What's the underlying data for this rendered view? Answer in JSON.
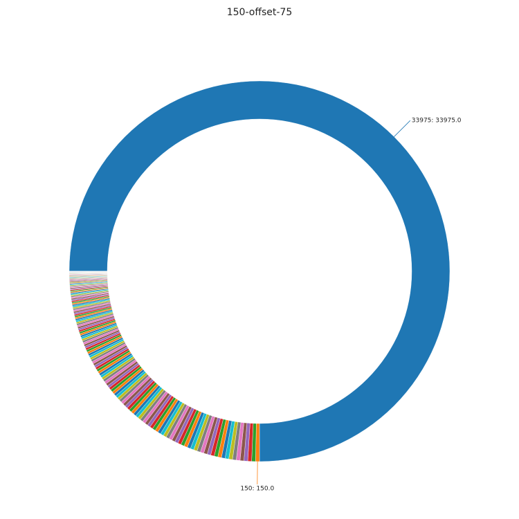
{
  "chart_data": {
    "type": "donut",
    "title": "150-offset-75",
    "startangle": 180,
    "counterclock": false,
    "colors": [
      "#1f77b4",
      "#ff7f0e",
      "#2ca02c",
      "#d62728",
      "#9467bd",
      "#8c564b",
      "#e377c2",
      "#7f7f7f",
      "#bcbd22",
      "#17becf"
    ],
    "values": [
      33975,
      150,
      149,
      148,
      147,
      146,
      145,
      144,
      143,
      142,
      141,
      140,
      139,
      138,
      137,
      136,
      135,
      134,
      133,
      132,
      131,
      130,
      129,
      128,
      127,
      126,
      125,
      124,
      123,
      122,
      121,
      120,
      119,
      118,
      117,
      116,
      115,
      114,
      113,
      112,
      111,
      110,
      109,
      108,
      107,
      106,
      105,
      104,
      103,
      102,
      101,
      100,
      99,
      98,
      97,
      96,
      95,
      94,
      93,
      92,
      91,
      90,
      89,
      88,
      87,
      86,
      85,
      84,
      83,
      82,
      81,
      80,
      79,
      78,
      77,
      76,
      75,
      74,
      73,
      72,
      71,
      70,
      69,
      68,
      67,
      66,
      65,
      64,
      63,
      62,
      61,
      60,
      59,
      58,
      57,
      56,
      55,
      54,
      53,
      52,
      51,
      50,
      49,
      48,
      47,
      46,
      45,
      44,
      43,
      42,
      41,
      40,
      39,
      38,
      37,
      36,
      35,
      34,
      33,
      32,
      31,
      30,
      29,
      28,
      27,
      26,
      25,
      24,
      23,
      22,
      21,
      20,
      19,
      18,
      17,
      16,
      15,
      14,
      13,
      12,
      11,
      10,
      9,
      8,
      7,
      6,
      5,
      4,
      3,
      2,
      1
    ],
    "value_labels": [
      "33975: 33975.0",
      "150: 150.0",
      null,
      null,
      null,
      null,
      null,
      null,
      null,
      null,
      null,
      null,
      null,
      null,
      null,
      null,
      null,
      null,
      null,
      null,
      null,
      null,
      null,
      null,
      null,
      null,
      null,
      null,
      null,
      null,
      null,
      null,
      null,
      null,
      null,
      null,
      null,
      null,
      null,
      null,
      null,
      null,
      null,
      null,
      null,
      null,
      null,
      null,
      null,
      null,
      null,
      null,
      null,
      null,
      null,
      null,
      null,
      null,
      null,
      null,
      null,
      null,
      null,
      null,
      null,
      null,
      null,
      null,
      null,
      null,
      null,
      null,
      null,
      null,
      null,
      null,
      null,
      null,
      null,
      null,
      null,
      null,
      null,
      null,
      null,
      null,
      null,
      null,
      null,
      null,
      null,
      null,
      null,
      null,
      null,
      null,
      null,
      null,
      null,
      null,
      null,
      null,
      null,
      null,
      null,
      null,
      null,
      null,
      null,
      null,
      null,
      null,
      null,
      null,
      null,
      null,
      null,
      null,
      null,
      null,
      null,
      null,
      null,
      null,
      null,
      null,
      null,
      null,
      null,
      null,
      null,
      null,
      null,
      null,
      null,
      null,
      null,
      null,
      null,
      null,
      null,
      null,
      null,
      null,
      null,
      null,
      null,
      null,
      null,
      null,
      null
    ]
  }
}
